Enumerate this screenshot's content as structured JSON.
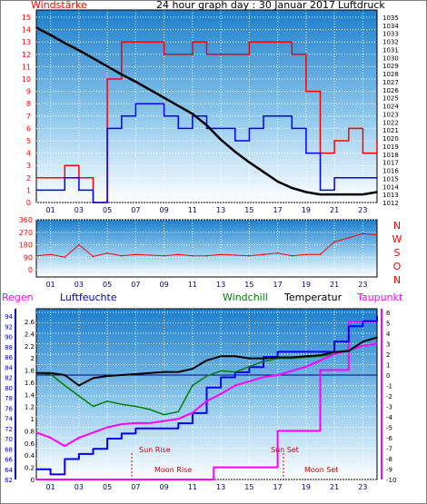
{
  "chart_data": [
    {
      "type": "line",
      "title": "24 hour graph day : 30 Januar 2017",
      "left_label": "Windstärke",
      "right_label": "Luftdruck",
      "x_ticks": [
        "01",
        "03",
        "05",
        "07",
        "09",
        "11",
        "13",
        "15",
        "17",
        "19",
        "21",
        "23"
      ],
      "y_left_ticks": [
        "0",
        "1",
        "2",
        "3",
        "4",
        "5",
        "6",
        "7",
        "8",
        "9",
        "10",
        "11",
        "12",
        "13",
        "14",
        "15"
      ],
      "y_right_ticks": [
        "1012",
        "1013",
        "1014",
        "1015",
        "1016",
        "1017",
        "1018",
        "1019",
        "1020",
        "1021",
        "1022",
        "1023",
        "1024",
        "1025",
        "1026",
        "1027",
        "1028",
        "1029",
        "1030",
        "1031",
        "1032",
        "1033",
        "1034",
        "1035"
      ],
      "xlim": [
        0,
        24
      ],
      "ylim_left": [
        0,
        15
      ],
      "ylim_right": [
        1012,
        1035
      ],
      "series": [
        {
          "name": "Luftdruck",
          "color": "#000000",
          "x": [
            0,
            1,
            2,
            3,
            4,
            5,
            6,
            7,
            8,
            9,
            10,
            11,
            12,
            13,
            14,
            15,
            16,
            17,
            18,
            19,
            20,
            21,
            22,
            23,
            24
          ],
          "values": [
            1033.7,
            1032.8,
            1031.8,
            1030.9,
            1029.9,
            1028.9,
            1027.9,
            1027.0,
            1026.0,
            1025.0,
            1024.0,
            1023.0,
            1021.6,
            1019.8,
            1018.3,
            1017.0,
            1015.8,
            1014.6,
            1013.8,
            1013.3,
            1013.0,
            1013.0,
            1013.0,
            1013.0,
            1013.3
          ]
        },
        {
          "name": "Windstärke Böen",
          "color": "#ff0000",
          "x": [
            0,
            1,
            2,
            3,
            4,
            5,
            6,
            7,
            8,
            9,
            10,
            11,
            12,
            13,
            14,
            15,
            16,
            17,
            18,
            19,
            20,
            21,
            22,
            23,
            24
          ],
          "values": [
            2,
            2,
            3,
            2,
            0,
            10,
            13,
            13,
            13,
            12,
            12,
            13,
            12,
            12,
            12,
            13,
            13,
            13,
            12,
            9,
            4,
            5,
            6,
            4,
            5
          ]
        },
        {
          "name": "Windstärke Mittel",
          "color": "#0000ff",
          "x": [
            0,
            1,
            2,
            3,
            4,
            5,
            6,
            7,
            8,
            9,
            10,
            11,
            12,
            13,
            14,
            15,
            16,
            17,
            18,
            19,
            20,
            21,
            22,
            23,
            24
          ],
          "values": [
            1,
            1,
            2,
            1,
            0,
            6,
            7,
            8,
            8,
            7,
            6,
            7,
            6,
            6,
            5,
            6,
            7,
            7,
            6,
            4,
            1,
            2,
            2,
            2,
            2
          ]
        }
      ]
    },
    {
      "type": "line",
      "x_ticks": [
        "01",
        "03",
        "05",
        "07",
        "09",
        "11",
        "13",
        "15",
        "17",
        "19",
        "21",
        "23"
      ],
      "y_left_ticks": [
        "0",
        "90",
        "180",
        "270",
        "360"
      ],
      "y_right_ticks": [
        "N",
        "W",
        "S",
        "O",
        "N"
      ],
      "xlim": [
        0,
        24
      ],
      "ylim": [
        0,
        360
      ],
      "series": [
        {
          "name": "Windrichtung",
          "color": "#ff0000",
          "x": [
            0,
            1,
            2,
            3,
            4,
            5,
            6,
            7,
            8,
            9,
            10,
            11,
            12,
            13,
            14,
            15,
            16,
            17,
            18,
            19,
            20,
            21,
            22,
            23,
            24
          ],
          "values": [
            100,
            110,
            90,
            180,
            95,
            120,
            100,
            110,
            105,
            100,
            110,
            100,
            100,
            110,
            105,
            100,
            110,
            120,
            100,
            110,
            110,
            200,
            230,
            260,
            250
          ]
        }
      ]
    },
    {
      "type": "line",
      "labels": [
        "Regen",
        "Luftfeuchte",
        "Windchill",
        "Temperatur",
        "Taupunkt"
      ],
      "x_ticks": [
        "01",
        "03",
        "05",
        "07",
        "09",
        "11",
        "13",
        "15",
        "17",
        "19",
        "21",
        "23"
      ],
      "y_rain_ticks": [
        "0",
        "0.2",
        "0.4",
        "0.6",
        "0.8",
        "1",
        "1.2",
        "1.4",
        "1.6",
        "1.8",
        "2",
        "2.2",
        "2.4",
        "2.6"
      ],
      "y_hum_ticks": [
        "62",
        "64",
        "66",
        "68",
        "70",
        "72",
        "74",
        "76",
        "78",
        "80",
        "82",
        "84",
        "86",
        "88",
        "90",
        "92",
        "94"
      ],
      "y_temp_ticks": [
        "-10",
        "-9",
        "-8",
        "-7",
        "-6",
        "-5",
        "-4",
        "-3",
        "-2",
        "-1",
        "0",
        "1",
        "2",
        "3",
        "4",
        "5",
        "6"
      ],
      "annotations": [
        "Sun Rise",
        "Sun Set",
        "Moon Rise",
        "Moon Set"
      ],
      "xlim": [
        0,
        24
      ],
      "ylim_temp": [
        -10,
        6
      ],
      "series": [
        {
          "name": "Temperatur",
          "color": "#000000",
          "x": [
            0,
            1,
            2,
            3,
            4,
            5,
            6,
            7,
            8,
            9,
            10,
            11,
            12,
            13,
            14,
            15,
            16,
            17,
            18,
            19,
            20,
            21,
            22,
            23,
            24
          ],
          "values": [
            0.2,
            0.2,
            0,
            -1,
            -0.3,
            -0.1,
            0,
            0.1,
            0.2,
            0.3,
            0.3,
            0.6,
            1.4,
            1.8,
            1.8,
            1.6,
            1.6,
            1.7,
            1.7,
            1.8,
            1.9,
            2.2,
            2.3,
            3.2,
            3.6
          ]
        },
        {
          "name": "Windchill",
          "color": "#008000",
          "x": [
            0,
            1,
            2,
            3,
            4,
            5,
            6,
            7,
            8,
            9,
            10,
            11,
            12,
            13,
            14,
            15,
            16,
            17,
            18,
            19,
            20,
            21,
            22,
            23,
            24
          ],
          "values": [
            0.2,
            0.1,
            -1,
            -2,
            -3,
            -2.5,
            -2.8,
            -3,
            -3.3,
            -3.8,
            -3.5,
            -1,
            -0.1,
            0.4,
            0.3,
            0.8,
            1.3,
            1.6,
            1.6,
            1.7,
            1.8,
            2,
            2.3,
            3.2,
            3.6
          ]
        },
        {
          "name": "Taupunkt",
          "color": "#ff00ff",
          "x": [
            0,
            1,
            2,
            3,
            4,
            5,
            6,
            7,
            8,
            9,
            10,
            11,
            12,
            13,
            14,
            15,
            16,
            17,
            18,
            19,
            20,
            21,
            22,
            23,
            24
          ],
          "values": [
            -5.5,
            -6,
            -6.8,
            -6,
            -5.5,
            -5,
            -4.7,
            -4.6,
            -4.6,
            -4.4,
            -4.2,
            -3.6,
            -2.5,
            -1.8,
            -1,
            -0.6,
            -0.2,
            0,
            0.4,
            0.8,
            1.4,
            2,
            2.4,
            2.8,
            3
          ]
        },
        {
          "name": "Luftfeuchte",
          "color": "#0000ff",
          "x": [
            0,
            1,
            2,
            3,
            4,
            5,
            6,
            7,
            8,
            9,
            10,
            11,
            12,
            13,
            14,
            15,
            16,
            17,
            18,
            19,
            20,
            21,
            22,
            23,
            24
          ],
          "values": [
            64,
            63,
            66,
            67,
            68,
            70,
            71,
            72,
            72,
            72,
            73,
            75,
            80,
            82,
            83,
            84,
            86,
            87,
            87,
            87,
            87,
            89,
            92,
            93,
            94
          ]
        },
        {
          "name": "Regen",
          "color": "#ff00ff",
          "x": [
            0,
            12,
            12.5,
            16,
            17,
            19,
            20,
            22,
            23,
            24
          ],
          "values": [
            0,
            0,
            0.2,
            0.2,
            0.8,
            0.8,
            1.8,
            2.6,
            2.6,
            2.6
          ]
        }
      ]
    }
  ]
}
